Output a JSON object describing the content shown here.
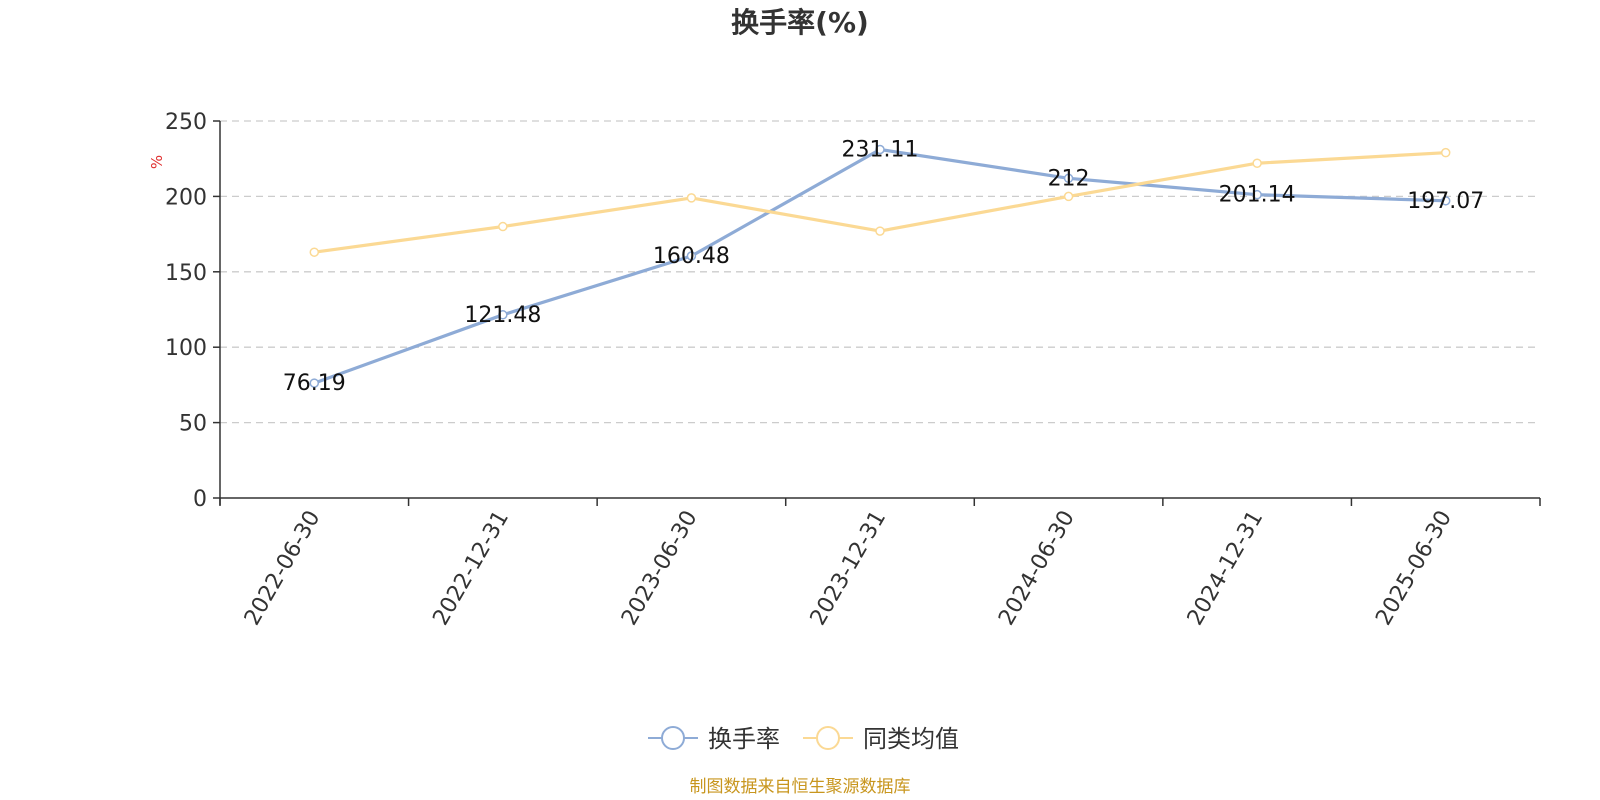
{
  "chart_data": {
    "type": "line",
    "title": "换手率(%)",
    "ylabel": "%",
    "xlabel": "",
    "ylim": [
      0,
      250
    ],
    "yticks": [
      0,
      50,
      100,
      150,
      200,
      250
    ],
    "grid": true,
    "legend_position": "bottom",
    "categories": [
      "2022-06-30",
      "2022-12-31",
      "2023-06-30",
      "2023-12-31",
      "2024-06-30",
      "2024-12-31",
      "2025-06-30"
    ],
    "series": [
      {
        "name": "换手率",
        "color": "#8eabd6",
        "values": [
          76.19,
          121.48,
          160.48,
          231.11,
          212,
          201.14,
          197.07
        ],
        "labels": [
          "76.19",
          "121.48",
          "160.48",
          "231.11",
          "212",
          "201.14",
          "197.07"
        ]
      },
      {
        "name": "同类均值",
        "color": "#fbd994",
        "values": [
          163,
          180,
          199,
          177,
          200,
          222,
          229
        ]
      }
    ]
  },
  "colors": {
    "unit_label": "#e03030",
    "source_text": "#c8961e",
    "axis": "#333333",
    "grid": "#cccccc"
  },
  "footer": {
    "source": "制图数据来自恒生聚源数据库"
  }
}
